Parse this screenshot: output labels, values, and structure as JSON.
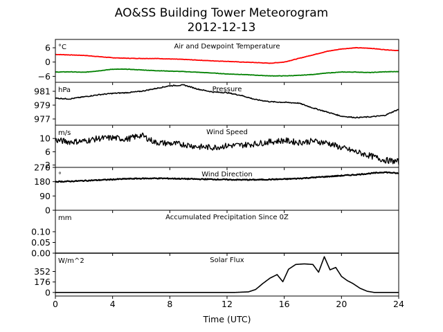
{
  "title_line1": "AO&SS Building Tower Meteorogram",
  "title_line2": "2012-12-13",
  "xlabel": "Time (UTC)",
  "chart_data": {
    "type": "line",
    "x_unit": "hours UTC",
    "x_ticks": [
      "0",
      "4",
      "8",
      "12",
      "16",
      "20",
      "24"
    ],
    "xlim": [
      0,
      24
    ],
    "panels": [
      {
        "id": "temperature",
        "title": "Air and Dewpoint Temperature",
        "unit": "°C",
        "ylim": [
          -8.5,
          9.5
        ],
        "y_ticks": [
          6,
          0,
          -6
        ],
        "y_tick_labels": [
          "6",
          "0",
          "−6"
        ],
        "x": [
          0,
          1,
          2,
          3,
          4,
          5,
          6,
          7,
          8,
          9,
          10,
          11,
          12,
          13,
          14,
          15,
          16,
          17,
          18,
          19,
          20,
          21,
          22,
          23,
          24
        ],
        "series": [
          {
            "color": "#ff0000",
            "values": [
              3.2,
              3.0,
              2.8,
              2.3,
              1.8,
              1.6,
              1.5,
              1.5,
              1.3,
              1.1,
              0.8,
              0.5,
              0.3,
              0.0,
              -0.2,
              -0.5,
              0.0,
              1.5,
              3.0,
              4.5,
              5.5,
              6.0,
              5.8,
              5.2,
              4.8
            ]
          },
          {
            "color": "#008000",
            "values": [
              -4.2,
              -4.1,
              -4.3,
              -3.7,
              -3.0,
              -3.0,
              -3.3,
              -3.6,
              -3.8,
              -4.0,
              -4.3,
              -4.6,
              -5.0,
              -5.2,
              -5.5,
              -5.8,
              -5.8,
              -5.6,
              -5.2,
              -4.6,
              -4.2,
              -4.2,
              -4.4,
              -4.1,
              -4.0
            ]
          }
        ]
      },
      {
        "id": "pressure",
        "title": "Pressure",
        "unit": "hPa",
        "ylim": [
          976.1,
          982.3
        ],
        "y_ticks": [
          981,
          979,
          977
        ],
        "y_tick_labels": [
          "981",
          "979",
          "977"
        ],
        "x": [
          0,
          1,
          2,
          3,
          4,
          5,
          6,
          7,
          8,
          9,
          10,
          11,
          12,
          13,
          14,
          15,
          16,
          17,
          18,
          19,
          20,
          21,
          22,
          23,
          24
        ],
        "series": [
          {
            "color": "#000000",
            "values": [
              980.0,
              979.9,
              980.2,
              980.5,
              980.7,
              980.8,
              981.0,
              981.4,
              981.8,
              981.9,
              981.3,
              980.9,
              980.8,
              980.4,
              979.8,
              979.5,
              979.4,
              979.3,
              978.6,
              978.0,
              977.4,
              977.2,
              977.3,
              977.5,
              978.4
            ]
          }
        ]
      },
      {
        "id": "wind_speed",
        "title": "Wind Speed",
        "unit": "m/s",
        "ylim": [
          1.3,
          14.0
        ],
        "y_ticks": [
          10,
          6,
          2
        ],
        "y_tick_labels": [
          "10",
          "6",
          "2"
        ],
        "x": [
          0,
          1,
          2,
          3,
          4,
          5,
          6,
          7,
          8,
          9,
          10,
          11,
          12,
          13,
          14,
          15,
          16,
          17,
          18,
          19,
          20,
          21,
          22,
          23,
          24
        ],
        "series": [
          {
            "color": "#000000",
            "values": [
              9.5,
              9.0,
              9.2,
              10.0,
              10.2,
              9.8,
              11.0,
              8.8,
              8.5,
              8.2,
              7.5,
              7.3,
              7.8,
              8.0,
              8.4,
              9.0,
              9.4,
              8.8,
              9.2,
              8.7,
              7.2,
              6.0,
              4.8,
              3.5,
              3.0
            ]
          }
        ]
      },
      {
        "id": "wind_direction",
        "title": "Wind Direction",
        "unit": "°",
        "ylim": [
          0,
          270
        ],
        "y_ticks": [
          270,
          180,
          90,
          0
        ],
        "y_tick_labels": [
          "270",
          "180",
          "90",
          "0"
        ],
        "x": [
          0,
          1,
          2,
          3,
          4,
          5,
          6,
          7,
          8,
          9,
          10,
          11,
          12,
          13,
          14,
          15,
          16,
          17,
          18,
          19,
          20,
          21,
          22,
          23,
          24
        ],
        "series": [
          {
            "color": "#000000",
            "values": [
              180,
              182,
              186,
              190,
              194,
              198,
              200,
              201,
              200,
              198,
              196,
              195,
              193,
              192,
              192,
              194,
              196,
              200,
              206,
              212,
              218,
              224,
              232,
              240,
              232
            ]
          }
        ]
      },
      {
        "id": "precipitation",
        "title": "Accumulated Precipitation Since 0Z",
        "unit": "mm",
        "ylim": [
          0,
          0.2
        ],
        "y_ticks": [
          0.1,
          0.05,
          0.0
        ],
        "y_tick_labels": [
          "0.10",
          "0.05",
          "0.00"
        ],
        "x": [
          0,
          24
        ],
        "series": [
          {
            "color": "#000000",
            "values": [
              0,
              0
            ]
          }
        ]
      },
      {
        "id": "solar_flux",
        "title": "Solar Flux",
        "unit": "W/m^2",
        "ylim": [
          -60,
          660
        ],
        "y_ticks": [
          352,
          176,
          0
        ],
        "y_tick_labels": [
          "352",
          "176",
          "0"
        ],
        "x": [
          0,
          12.5,
          13.5,
          14.0,
          14.5,
          15.0,
          15.5,
          15.9,
          16.3,
          16.8,
          17.4,
          18.0,
          18.4,
          18.8,
          19.2,
          19.6,
          20.0,
          20.4,
          20.8,
          21.3,
          21.8,
          22.3,
          24
        ],
        "series": [
          {
            "color": "#000000",
            "values": [
              0,
              0,
              10,
              50,
              150,
              240,
              300,
              180,
              390,
              470,
              480,
              470,
              340,
              600,
              380,
              420,
              270,
              200,
              150,
              70,
              20,
              0,
              0
            ]
          }
        ]
      }
    ]
  }
}
